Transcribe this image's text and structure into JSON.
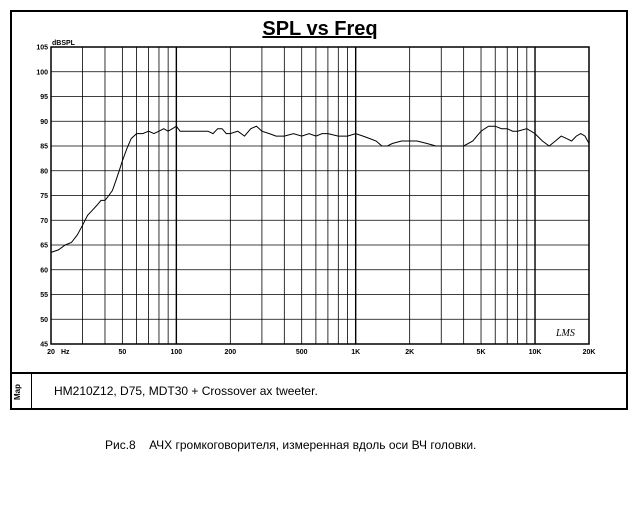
{
  "chart_data": {
    "type": "line",
    "title": "SPL vs Freq",
    "ylabel": "dBSPL",
    "xscale": "log",
    "xlim": [
      20,
      20000
    ],
    "ylim": [
      45,
      105
    ],
    "grid": true,
    "y_ticks": [
      45,
      50,
      55,
      60,
      65,
      70,
      75,
      80,
      85,
      90,
      95,
      100,
      105
    ],
    "x_ticks": [
      {
        "value": 20,
        "label": "20"
      },
      {
        "value": 50,
        "label": "50"
      },
      {
        "value": 100,
        "label": "100"
      },
      {
        "value": 200,
        "label": "200"
      },
      {
        "value": 500,
        "label": "500"
      },
      {
        "value": 1000,
        "label": "1K"
      },
      {
        "value": 2000,
        "label": "2K"
      },
      {
        "value": 5000,
        "label": "5K"
      },
      {
        "value": 10000,
        "label": "10K"
      },
      {
        "value": 20000,
        "label": "20K"
      }
    ],
    "x_unit": "Hz",
    "series": [
      {
        "color": "#000000",
        "x": [
          20,
          22,
          24,
          26,
          28,
          30,
          32,
          34,
          36,
          38,
          40,
          42,
          44,
          46,
          48,
          50,
          53,
          56,
          60,
          65,
          70,
          75,
          80,
          85,
          90,
          95,
          100,
          105,
          110,
          120,
          130,
          140,
          150,
          160,
          170,
          180,
          190,
          200,
          220,
          240,
          260,
          280,
          300,
          330,
          360,
          400,
          450,
          500,
          550,
          600,
          650,
          700,
          800,
          900,
          1000,
          1100,
          1200,
          1300,
          1400,
          1500,
          1600,
          1800,
          2000,
          2200,
          2500,
          2800,
          3000,
          3300,
          3600,
          4000,
          4500,
          5000,
          5500,
          6000,
          6500,
          7000,
          7500,
          8000,
          9000,
          10000,
          11000,
          12000,
          13000,
          14000,
          15000,
          16000,
          17000,
          18000,
          19000,
          20000
        ],
        "y": [
          63.5,
          64,
          65,
          65.5,
          67,
          69,
          71,
          72,
          73,
          74,
          74,
          75,
          76,
          78,
          80,
          82,
          84.5,
          86.5,
          87.5,
          87.5,
          88,
          87.5,
          88,
          88.5,
          88,
          88.5,
          89,
          88,
          88,
          88,
          88,
          88,
          88,
          87.5,
          88.5,
          88.5,
          87.5,
          87.5,
          88,
          87,
          88.5,
          89,
          88,
          87.5,
          87,
          87,
          87.5,
          87,
          87.5,
          87,
          87.5,
          87.5,
          87,
          87,
          87.5,
          87,
          86.5,
          86,
          85,
          85,
          85.5,
          86,
          86,
          86,
          85.5,
          85,
          85,
          85,
          85,
          85,
          86,
          88,
          89,
          89,
          88.5,
          88.5,
          88,
          88,
          88.5,
          87.5,
          86,
          85,
          86,
          87,
          86.5,
          86,
          87,
          87.5,
          87,
          85.5
        ]
      }
    ]
  },
  "plot": {
    "brand": "LMS"
  },
  "legend": {
    "side_label": "Map",
    "text": "HM210Z12, D75, MDT30 + Crossover    ax tweeter."
  },
  "caption": {
    "number": "Рис.8",
    "text": "АЧХ громкоговорителя, измеренная вдоль оси ВЧ головки."
  }
}
